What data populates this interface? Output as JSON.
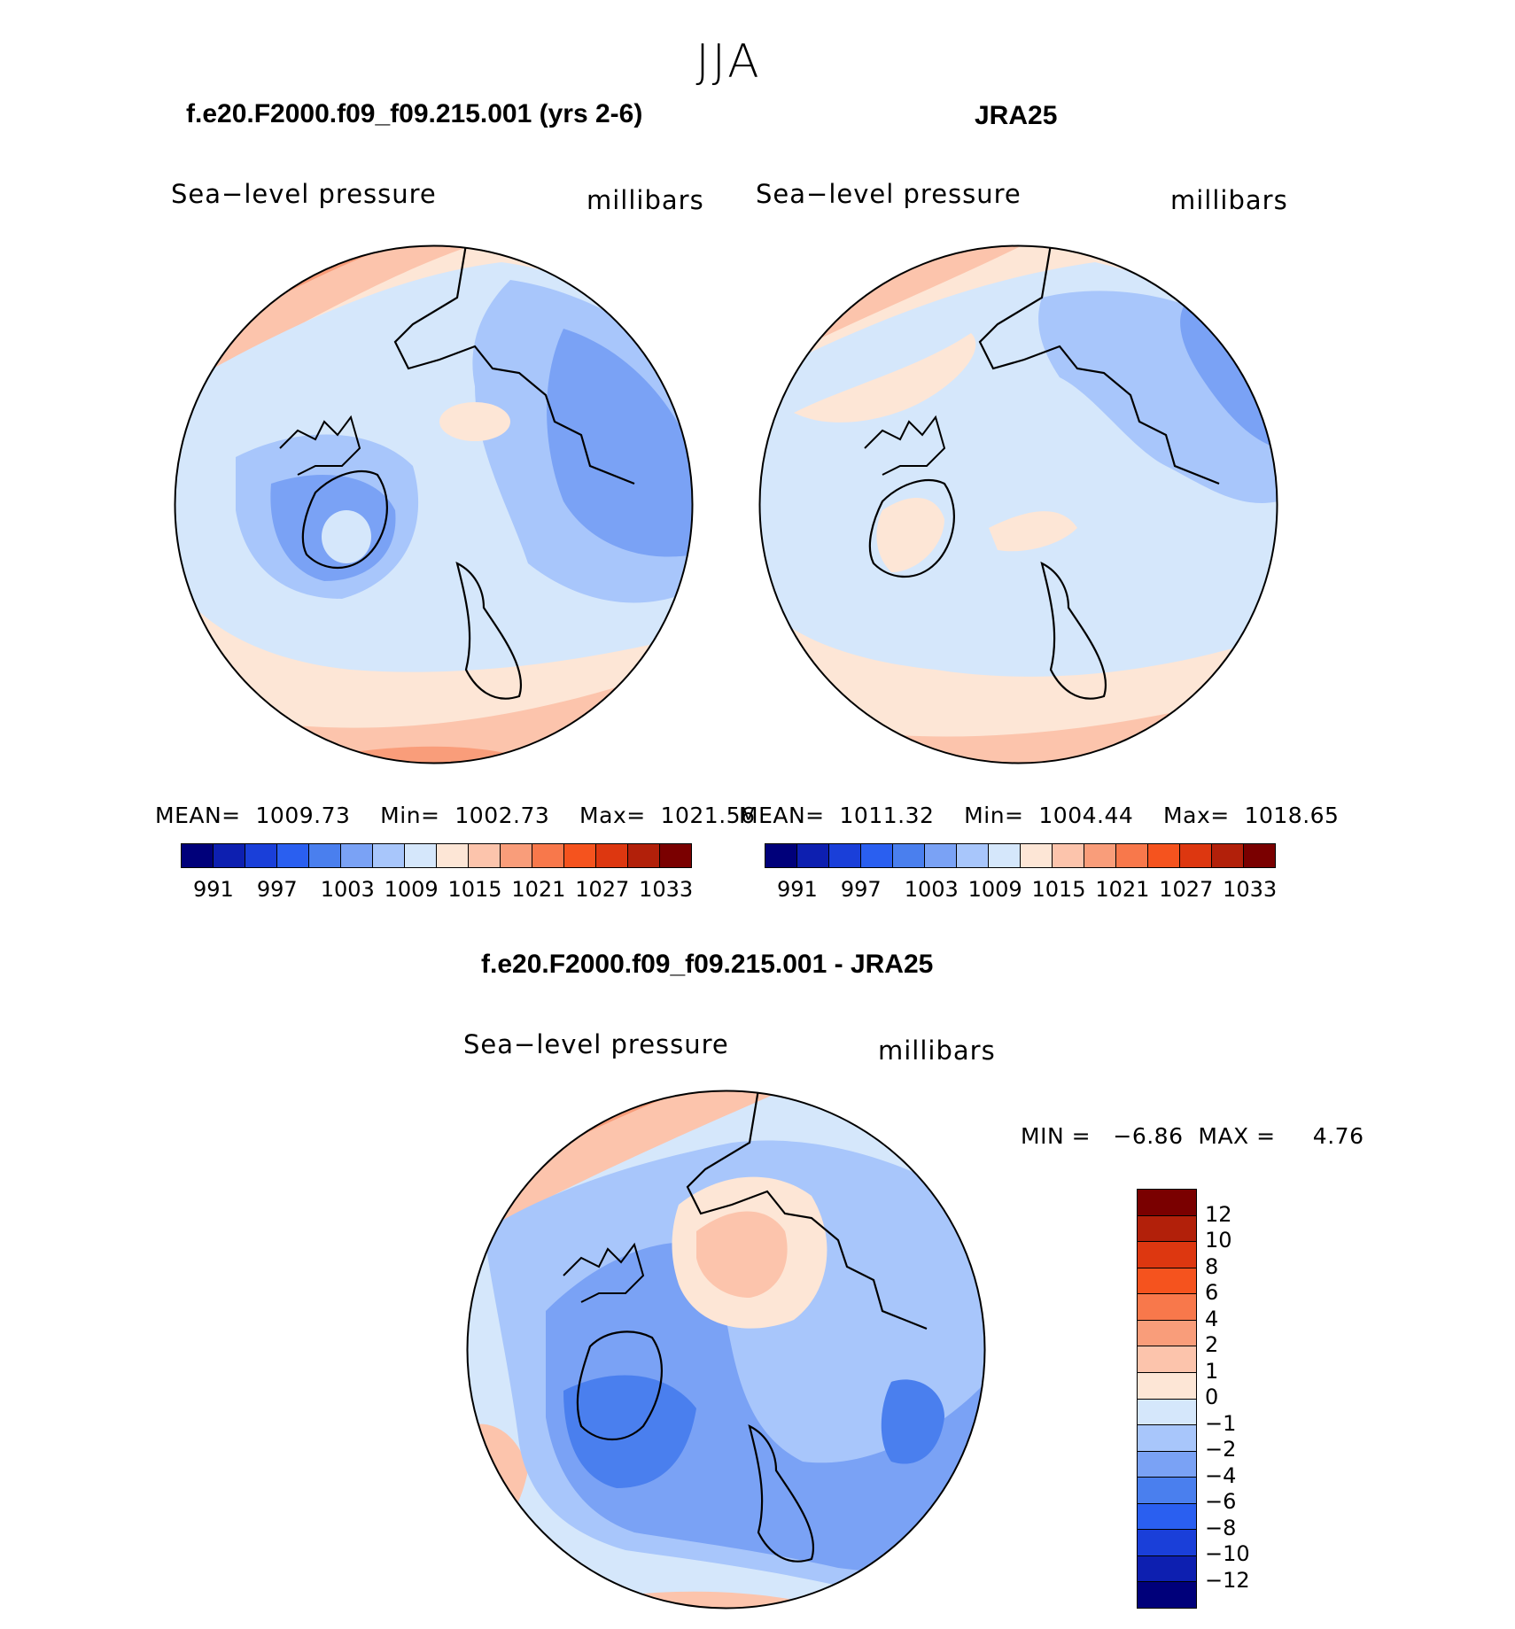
{
  "figure_title": "JJA",
  "panels": [
    {
      "title": "f.e20.F2000.f09_f09.215.001 (yrs 2-6)",
      "subtitle_left": "Sea−level pressure",
      "subtitle_right": "millibars",
      "stats": "MEAN=  1009.73    Min=  1002.73    Max=  1021.56",
      "mean": 1009.73,
      "min": 1002.73,
      "max": 1021.56,
      "colorbar_labels": [
        "991",
        "997",
        "1003",
        "1009",
        "1015",
        "1021",
        "1027",
        "1033"
      ]
    },
    {
      "title": "JRA25",
      "subtitle_left": "Sea−level pressure",
      "subtitle_right": "millibars",
      "stats": "MEAN=  1011.32    Min=  1004.44    Max=  1018.65",
      "mean": 1011.32,
      "min": 1004.44,
      "max": 1018.65,
      "colorbar_labels": [
        "991",
        "997",
        "1003",
        "1009",
        "1015",
        "1021",
        "1027",
        "1033"
      ]
    },
    {
      "title": "f.e20.F2000.f09_f09.215.001 - JRA25",
      "subtitle_left": "Sea−level pressure",
      "subtitle_right": "millibars",
      "stats": "MIN =   −6.86  MAX =     4.76",
      "min": -6.86,
      "max": 4.76,
      "colorbar_labels": [
        "12",
        "10",
        "8",
        "6",
        "4",
        "2",
        "1",
        "0",
        "−1",
        "−2",
        "−4",
        "−6",
        "−8",
        "−10",
        "−12"
      ]
    }
  ],
  "colors": {
    "abs_scale": [
      "#00007a",
      "#0d1fb0",
      "#1a3fd9",
      "#2a5ff0",
      "#4a7fee",
      "#7aa2f5",
      "#a8c6fb",
      "#d5e7fb",
      "#fde6d6",
      "#fcc4ac",
      "#f99d7a",
      "#f8784b",
      "#f5531e",
      "#dd3710",
      "#b2200a",
      "#7a0000"
    ],
    "diff_scale": [
      "#7a0000",
      "#b2200a",
      "#dd3710",
      "#f5531e",
      "#f8784b",
      "#f99d7a",
      "#fcc4ac",
      "#fde6d6",
      "#d5e7fb",
      "#a8c6fb",
      "#7aa2f5",
      "#4a7fee",
      "#2a5ff0",
      "#1a3fd9",
      "#0d1fb0",
      "#00007a"
    ]
  }
}
